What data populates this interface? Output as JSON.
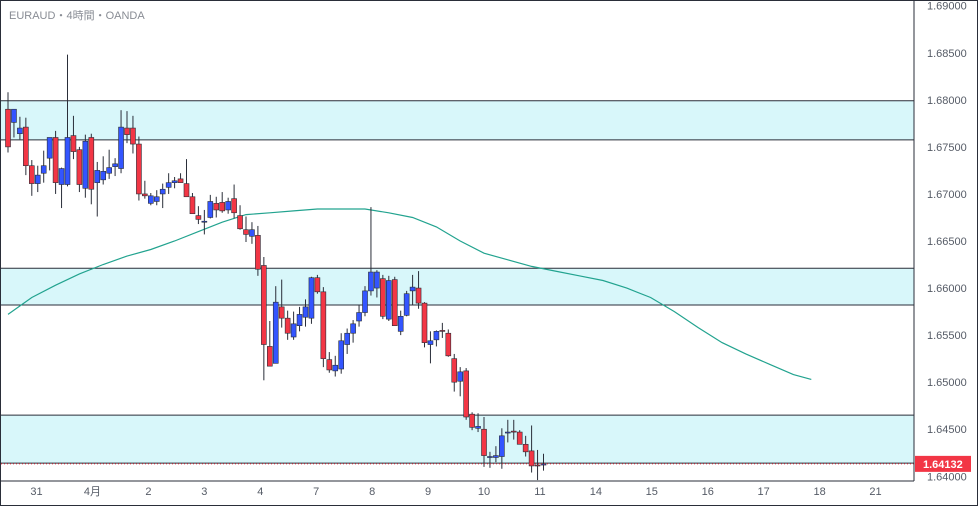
{
  "header": {
    "title": "EURAUD・4時間・OANDA"
  },
  "chart_data": {
    "type": "candlestick",
    "symbol": "EURAUD",
    "timeframe": "4時間",
    "source": "OANDA",
    "current_price": "1.64132",
    "ylim": [
      1.6395,
      1.6905
    ],
    "y_ticks": [
      "1.69000",
      "1.68500",
      "1.68000",
      "1.67500",
      "1.67000",
      "1.66500",
      "1.66000",
      "1.65500",
      "1.65000",
      "1.64500",
      "1.64000"
    ],
    "x_ticks": [
      "31",
      "4月",
      "2",
      "3",
      "4",
      "7",
      "8",
      "9",
      "10",
      "11",
      "14",
      "15",
      "16",
      "17",
      "18",
      "21"
    ],
    "x_tick_index": [
      4.8,
      14.2,
      23.6,
      33,
      42.4,
      51.8,
      61.2,
      70.6,
      80,
      89.4,
      98.8,
      108.2,
      117.6,
      127,
      136.4,
      145.8
    ],
    "zones": [
      {
        "top": 1.6799,
        "bottom": 1.67575
      },
      {
        "top": 1.6621,
        "bottom": 1.6582
      },
      {
        "top": 1.6465,
        "bottom": 1.6414
      }
    ],
    "candles": [
      [
        1.679,
        1.6808,
        1.6744,
        1.675
      ],
      [
        1.6776,
        1.679,
        1.676,
        1.679
      ],
      [
        1.6764,
        1.6782,
        1.6758,
        1.677
      ],
      [
        1.6771,
        1.6781,
        1.672,
        1.673
      ],
      [
        1.673,
        1.6736,
        1.6698,
        1.6711
      ],
      [
        1.6711,
        1.673,
        1.6702,
        1.672
      ],
      [
        1.6722,
        1.6746,
        1.6712,
        1.673
      ],
      [
        1.6738,
        1.676,
        1.6725,
        1.676
      ],
      [
        1.676,
        1.6767,
        1.67,
        1.6712
      ],
      [
        1.671,
        1.6728,
        1.6685,
        1.6727
      ],
      [
        1.671,
        1.6848,
        1.6708,
        1.676
      ],
      [
        1.6762,
        1.6783,
        1.6737,
        1.6745
      ],
      [
        1.6747,
        1.675,
        1.6702,
        1.671
      ],
      [
        1.6706,
        1.6763,
        1.6696,
        1.6756
      ],
      [
        1.676,
        1.6764,
        1.6689,
        1.6705
      ],
      [
        1.6712,
        1.6734,
        1.6676,
        1.6725
      ],
      [
        1.6715,
        1.674,
        1.671,
        1.6724
      ],
      [
        1.6722,
        1.6747,
        1.6716,
        1.6728
      ],
      [
        1.6729,
        1.6738,
        1.6719,
        1.6732
      ],
      [
        1.6727,
        1.6789,
        1.6722,
        1.6771
      ],
      [
        1.677,
        1.6788,
        1.6754,
        1.6763
      ],
      [
        1.677,
        1.6783,
        1.6743,
        1.6753
      ],
      [
        1.6753,
        1.6761,
        1.6693,
        1.67
      ],
      [
        1.67,
        1.6714,
        1.6695,
        1.6698
      ],
      [
        1.669,
        1.6701,
        1.6688,
        1.6698
      ],
      [
        1.6692,
        1.6704,
        1.6688,
        1.6697
      ],
      [
        1.67,
        1.6711,
        1.6685,
        1.6705
      ],
      [
        1.6707,
        1.6722,
        1.67,
        1.6712
      ],
      [
        1.6712,
        1.6718,
        1.6706,
        1.6714
      ],
      [
        1.6716,
        1.6722,
        1.6712,
        1.6712
      ],
      [
        1.6711,
        1.6737,
        1.6698,
        1.6697
      ],
      [
        1.6697,
        1.6701,
        1.6679,
        1.6679
      ],
      [
        1.6677,
        1.6687,
        1.6668,
        1.6673
      ],
      [
        1.667,
        1.6683,
        1.6657,
        1.6671
      ],
      [
        1.6675,
        1.6699,
        1.6674,
        1.6692
      ],
      [
        1.669,
        1.6697,
        1.6675,
        1.6683
      ],
      [
        1.6691,
        1.6702,
        1.668,
        1.6682
      ],
      [
        1.6683,
        1.6696,
        1.6679,
        1.6692
      ],
      [
        1.6695,
        1.671,
        1.6674,
        1.668
      ],
      [
        1.6677,
        1.6688,
        1.6662,
        1.6663
      ],
      [
        1.6662,
        1.6676,
        1.6649,
        1.6657
      ],
      [
        1.6655,
        1.667,
        1.6647,
        1.6662
      ],
      [
        1.6656,
        1.6666,
        1.6613,
        1.662
      ],
      [
        1.6624,
        1.6633,
        1.6502,
        1.654
      ],
      [
        1.6538,
        1.6565,
        1.6519,
        1.6517
      ],
      [
        1.652,
        1.6602,
        1.652,
        1.6585
      ],
      [
        1.658,
        1.6609,
        1.6558,
        1.6568
      ],
      [
        1.6568,
        1.6576,
        1.6545,
        1.6552
      ],
      [
        1.6548,
        1.6575,
        1.6545,
        1.6562
      ],
      [
        1.656,
        1.658,
        1.6554,
        1.6572
      ],
      [
        1.6569,
        1.6588,
        1.6559,
        1.658
      ],
      [
        1.6568,
        1.6612,
        1.6562,
        1.6611
      ],
      [
        1.6611,
        1.6614,
        1.6594,
        1.6596
      ],
      [
        1.6596,
        1.6601,
        1.6516,
        1.6525
      ],
      [
        1.6524,
        1.6532,
        1.651,
        1.6513
      ],
      [
        1.6512,
        1.6528,
        1.6506,
        1.6518
      ],
      [
        1.6514,
        1.6552,
        1.6509,
        1.6544
      ],
      [
        1.654,
        1.6557,
        1.653,
        1.6552
      ],
      [
        1.6552,
        1.6566,
        1.6542,
        1.6562
      ],
      [
        1.6565,
        1.6582,
        1.6559,
        1.6574
      ],
      [
        1.6574,
        1.6602,
        1.657,
        1.6597
      ],
      [
        1.6597,
        1.6686,
        1.6592,
        1.6617
      ],
      [
        1.66,
        1.6619,
        1.659,
        1.6617
      ],
      [
        1.661,
        1.6614,
        1.6567,
        1.657
      ],
      [
        1.6567,
        1.6613,
        1.6565,
        1.6608
      ],
      [
        1.6609,
        1.6612,
        1.656,
        1.656
      ],
      [
        1.6554,
        1.6576,
        1.655,
        1.657
      ],
      [
        1.6571,
        1.6597,
        1.657,
        1.6594
      ],
      [
        1.6597,
        1.6614,
        1.6582,
        1.6601
      ],
      [
        1.66,
        1.6618,
        1.6578,
        1.6584
      ],
      [
        1.6584,
        1.6585,
        1.6537,
        1.6542
      ],
      [
        1.654,
        1.6554,
        1.652,
        1.6544
      ],
      [
        1.6545,
        1.6555,
        1.6538,
        1.6554
      ],
      [
        1.6555,
        1.6563,
        1.6547,
        1.6554
      ],
      [
        1.6552,
        1.6556,
        1.6527,
        1.6528
      ],
      [
        1.6525,
        1.653,
        1.649,
        1.65
      ],
      [
        1.6501,
        1.6516,
        1.6485,
        1.6511
      ],
      [
        1.6512,
        1.6515,
        1.646,
        1.6463
      ],
      [
        1.6466,
        1.6468,
        1.6449,
        1.6452
      ],
      [
        1.6451,
        1.6467,
        1.6447,
        1.6453
      ],
      [
        1.645,
        1.6463,
        1.641,
        1.6422
      ],
      [
        1.642,
        1.6426,
        1.6409,
        1.6421
      ],
      [
        1.642,
        1.6432,
        1.6415,
        1.6422
      ],
      [
        1.6421,
        1.6451,
        1.6408,
        1.6443
      ],
      [
        1.6446,
        1.646,
        1.6436,
        1.6447
      ],
      [
        1.6448,
        1.646,
        1.6439,
        1.6447
      ],
      [
        1.6447,
        1.6449,
        1.6434,
        1.6434
      ],
      [
        1.6434,
        1.6443,
        1.6421,
        1.6426
      ],
      [
        1.6427,
        1.6454,
        1.6404,
        1.6411
      ],
      [
        1.6412,
        1.6428,
        1.6396,
        1.6411
      ],
      [
        1.6413,
        1.6424,
        1.6406,
        1.6413
      ]
    ],
    "moving_average": [
      [
        0,
        1.6572
      ],
      [
        4,
        1.659
      ],
      [
        8,
        1.6603
      ],
      [
        12,
        1.6615
      ],
      [
        16,
        1.6625
      ],
      [
        20,
        1.6634
      ],
      [
        24,
        1.6641
      ],
      [
        28,
        1.665
      ],
      [
        32,
        1.666
      ],
      [
        36,
        1.667
      ],
      [
        40,
        1.6678
      ],
      [
        44,
        1.668
      ],
      [
        48,
        1.6682
      ],
      [
        52,
        1.6684
      ],
      [
        56,
        1.6684
      ],
      [
        60,
        1.6684
      ],
      [
        64,
        1.668
      ],
      [
        68,
        1.6675
      ],
      [
        72,
        1.6665
      ],
      [
        76,
        1.665
      ],
      [
        80,
        1.6637
      ],
      [
        84,
        1.663
      ],
      [
        88,
        1.6623
      ],
      [
        92,
        1.6618
      ],
      [
        96,
        1.6613
      ],
      [
        100,
        1.6608
      ],
      [
        104,
        1.66
      ],
      [
        108,
        1.659
      ],
      [
        112,
        1.6575
      ],
      [
        116,
        1.6558
      ],
      [
        120,
        1.6542
      ],
      [
        124,
        1.653
      ],
      [
        128,
        1.6519
      ],
      [
        132,
        1.6508
      ],
      [
        135,
        1.6503
      ]
    ],
    "colors": {
      "up": "#3355ff",
      "down": "#f23645",
      "wick": "#2a2e39",
      "zone_fill": "#d8f7fa",
      "zone_line": "#2a2e39",
      "ma": "#22a38f",
      "price_tag": "#f23645"
    }
  }
}
